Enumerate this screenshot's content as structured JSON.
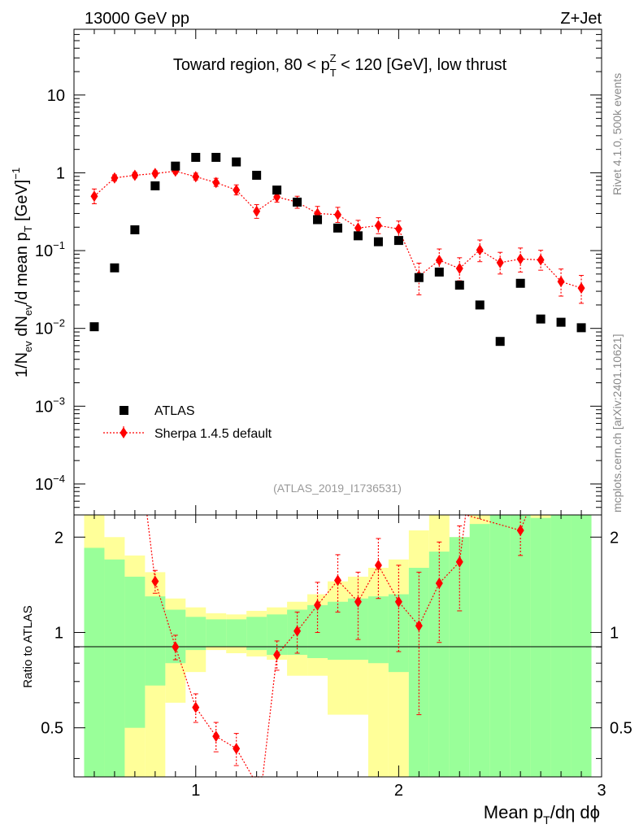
{
  "header": {
    "left": "13000 GeV pp",
    "right": "Z+Jet"
  },
  "side_labels": {
    "rivet": "Rivet 4.1.0,  500k events",
    "mcplots": "mcplots.cern.ch [arXiv:2401.10621]"
  },
  "chart_data": {
    "type": "scatter",
    "title": "Toward region, 80 < p_T^Z < 120 [GeV], low thrust",
    "analysis_id": "(ATLAS_2019_I1736531)",
    "xlabel": "Mean p_T/dη dϕ",
    "ylabel": "1/N_ev dN_ev/d mean p_T [GeV]^-1",
    "ratio_ylabel": "Ratio to ATLAS",
    "xlim": [
      0.4,
      3.0
    ],
    "ylim": [
      4e-05,
      70
    ],
    "yscale": "log",
    "ratio_ylim": [
      0.35,
      2.35
    ],
    "x_ticks": [
      {
        "v": 1,
        "label": "1"
      },
      {
        "v": 2,
        "label": "2"
      },
      {
        "v": 3,
        "label": "3"
      }
    ],
    "y_ticks": [
      {
        "v": 0.0001,
        "base": "10",
        "exp": "−4"
      },
      {
        "v": 0.001,
        "base": "10",
        "exp": "−3"
      },
      {
        "v": 0.01,
        "base": "10",
        "exp": "−2"
      },
      {
        "v": 0.1,
        "base": "10",
        "exp": "−1"
      },
      {
        "v": 1,
        "base": "1",
        "exp": ""
      },
      {
        "v": 10,
        "base": "10",
        "exp": ""
      }
    ],
    "ratio_ticks": [
      {
        "v": 0.5,
        "label": "0.5"
      },
      {
        "v": 1,
        "label": "1"
      },
      {
        "v": 2,
        "label": "2"
      }
    ],
    "legend": [
      {
        "name": "ATLAS",
        "marker": "square",
        "color": "#000000"
      },
      {
        "name": "Sherpa 1.4.5 default",
        "marker": "diamond",
        "color": "#ff0000"
      }
    ],
    "series": [
      {
        "name": "ATLAS",
        "x": [
          0.5,
          0.6,
          0.7,
          0.8,
          0.9,
          1.0,
          1.1,
          1.2,
          1.3,
          1.4,
          1.5,
          1.6,
          1.7,
          1.8,
          1.9,
          2.0,
          2.1,
          2.2,
          2.3,
          2.4,
          2.5,
          2.6,
          2.7,
          2.8,
          2.9
        ],
        "y": [
          0.0105,
          0.06,
          0.185,
          0.68,
          1.22,
          1.58,
          1.58,
          1.38,
          0.93,
          0.6,
          0.42,
          0.25,
          0.195,
          0.155,
          0.13,
          0.135,
          0.045,
          0.053,
          0.036,
          0.02,
          0.0068,
          0.038,
          0.0132,
          0.012,
          0.0102
        ]
      },
      {
        "name": "Sherpa 1.4.5 default",
        "x": [
          0.5,
          0.6,
          0.7,
          0.8,
          0.9,
          1.0,
          1.1,
          1.2,
          1.3,
          1.4,
          1.5,
          1.6,
          1.7,
          1.8,
          1.9,
          2.0,
          2.1,
          2.2,
          2.3,
          2.4,
          2.5,
          2.6,
          2.7,
          2.8,
          2.9
        ],
        "y": [
          0.5,
          0.86,
          0.93,
          0.98,
          1.05,
          0.89,
          0.75,
          0.6,
          0.32,
          0.49,
          0.42,
          0.3,
          0.29,
          0.195,
          0.21,
          0.19,
          0.047,
          0.075,
          0.059,
          0.102,
          0.07,
          0.078,
          0.076,
          0.04,
          0.033
        ],
        "err_up": [
          0.12,
          0.08,
          0.08,
          0.08,
          0.1,
          0.1,
          0.1,
          0.1,
          0.07,
          0.08,
          0.08,
          0.07,
          0.07,
          0.05,
          0.055,
          0.05,
          0.022,
          0.03,
          0.022,
          0.035,
          0.025,
          0.03,
          0.025,
          0.018,
          0.015
        ],
        "err_down": [
          0.1,
          0.07,
          0.07,
          0.07,
          0.08,
          0.08,
          0.08,
          0.08,
          0.06,
          0.07,
          0.07,
          0.06,
          0.06,
          0.04,
          0.045,
          0.04,
          0.02,
          0.025,
          0.018,
          0.03,
          0.02,
          0.025,
          0.02,
          0.014,
          0.012
        ]
      }
    ],
    "ratio": {
      "x": [
        0.8,
        0.9,
        1.0,
        1.1,
        1.2,
        1.3,
        1.4,
        1.5,
        1.6,
        1.7,
        1.8,
        1.9,
        2.0,
        2.1,
        2.2,
        2.3,
        2.6
      ],
      "y": [
        1.45,
        0.9,
        0.58,
        0.47,
        0.43,
        0.31,
        0.85,
        1.01,
        1.22,
        1.46,
        1.25,
        1.63,
        1.25,
        1.05,
        1.43,
        1.67,
        2.1
      ],
      "err": [
        0.12,
        0.08,
        0.06,
        0.05,
        0.05,
        0.05,
        0.09,
        0.15,
        0.22,
        0.3,
        0.3,
        0.35,
        0.38,
        0.5,
        0.5,
        0.5,
        0.35
      ]
    },
    "ratio_bands": {
      "edges": [
        0.45,
        0.55,
        0.65,
        0.75,
        0.85,
        0.95,
        1.05,
        1.15,
        1.25,
        1.35,
        1.45,
        1.55,
        1.65,
        1.75,
        1.85,
        1.95,
        2.05,
        2.15,
        2.25,
        2.35,
        2.45,
        2.55,
        2.65,
        2.75,
        2.85,
        2.95
      ],
      "stat_lo": [
        0.3,
        0.3,
        0.5,
        0.68,
        0.8,
        0.88,
        0.9,
        0.9,
        0.88,
        0.85,
        0.85,
        0.83,
        0.82,
        0.82,
        0.8,
        0.75,
        0.35,
        0.35,
        0.35,
        0.35,
        0.35,
        0.35,
        0.35,
        0.35,
        0.35
      ],
      "stat_hi": [
        1.85,
        1.7,
        1.5,
        1.3,
        1.18,
        1.12,
        1.1,
        1.1,
        1.12,
        1.14,
        1.18,
        1.22,
        1.25,
        1.28,
        1.3,
        1.32,
        1.6,
        1.8,
        2.0,
        2.2,
        2.4,
        2.4,
        2.3,
        2.35,
        2.35
      ],
      "sys_lo": [
        0.3,
        0.3,
        0.3,
        0.35,
        0.6,
        0.75,
        0.88,
        0.86,
        0.84,
        0.82,
        0.73,
        0.73,
        0.55,
        0.55,
        0.3,
        0.3,
        0.3,
        0.35,
        0.45,
        0.4,
        0.35,
        0.35,
        0.35,
        0.35,
        0.35
      ],
      "sys_hi": [
        2.35,
        2.0,
        1.75,
        1.55,
        1.28,
        1.2,
        1.15,
        1.14,
        1.17,
        1.2,
        1.25,
        1.32,
        1.45,
        1.5,
        1.6,
        1.7,
        2.1,
        2.35,
        2.0,
        2.35,
        2.35,
        2.35,
        2.35,
        2.35,
        2.35
      ]
    }
  }
}
